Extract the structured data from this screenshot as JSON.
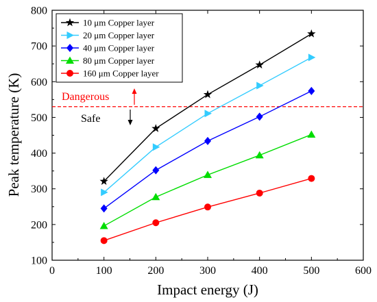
{
  "chart_data": {
    "type": "line",
    "xlabel": "Impact energy (J)",
    "ylabel": "Peak temperature (K)",
    "xlim": [
      0,
      600
    ],
    "ylim": [
      100,
      800
    ],
    "x_ticks": [
      0,
      100,
      200,
      300,
      400,
      500,
      600
    ],
    "y_ticks": [
      100,
      200,
      300,
      400,
      500,
      600,
      700,
      800
    ],
    "grid": false,
    "legend_position": "top-left",
    "x": [
      100,
      200,
      300,
      400,
      500
    ],
    "series": [
      {
        "name": "10 μm Copper layer",
        "values": [
          321,
          469,
          564,
          647,
          734
        ],
        "color": "#000000",
        "marker": "star"
      },
      {
        "name": "20 μm Copper layer",
        "values": [
          290,
          417,
          511,
          589,
          668
        ],
        "color": "#33ccff",
        "marker": "triangle-right"
      },
      {
        "name": "40 μm Copper layer",
        "values": [
          245,
          352,
          434,
          502,
          574
        ],
        "color": "#0000ff",
        "marker": "diamond"
      },
      {
        "name": "80 μm Copper layer",
        "values": [
          196,
          277,
          339,
          394,
          452
        ],
        "color": "#00dd00",
        "marker": "triangle-up"
      },
      {
        "name": "160 μm Copper layer",
        "values": [
          155,
          205,
          249,
          288,
          329
        ],
        "color": "#ff0000",
        "marker": "circle"
      }
    ],
    "threshold": {
      "value": 530,
      "color": "#ff0000",
      "style": "dashed"
    },
    "annotations": {
      "dangerous": {
        "text": "Dangerous",
        "color": "#ff0000"
      },
      "safe": {
        "text": "Safe",
        "color": "#000000"
      }
    }
  }
}
